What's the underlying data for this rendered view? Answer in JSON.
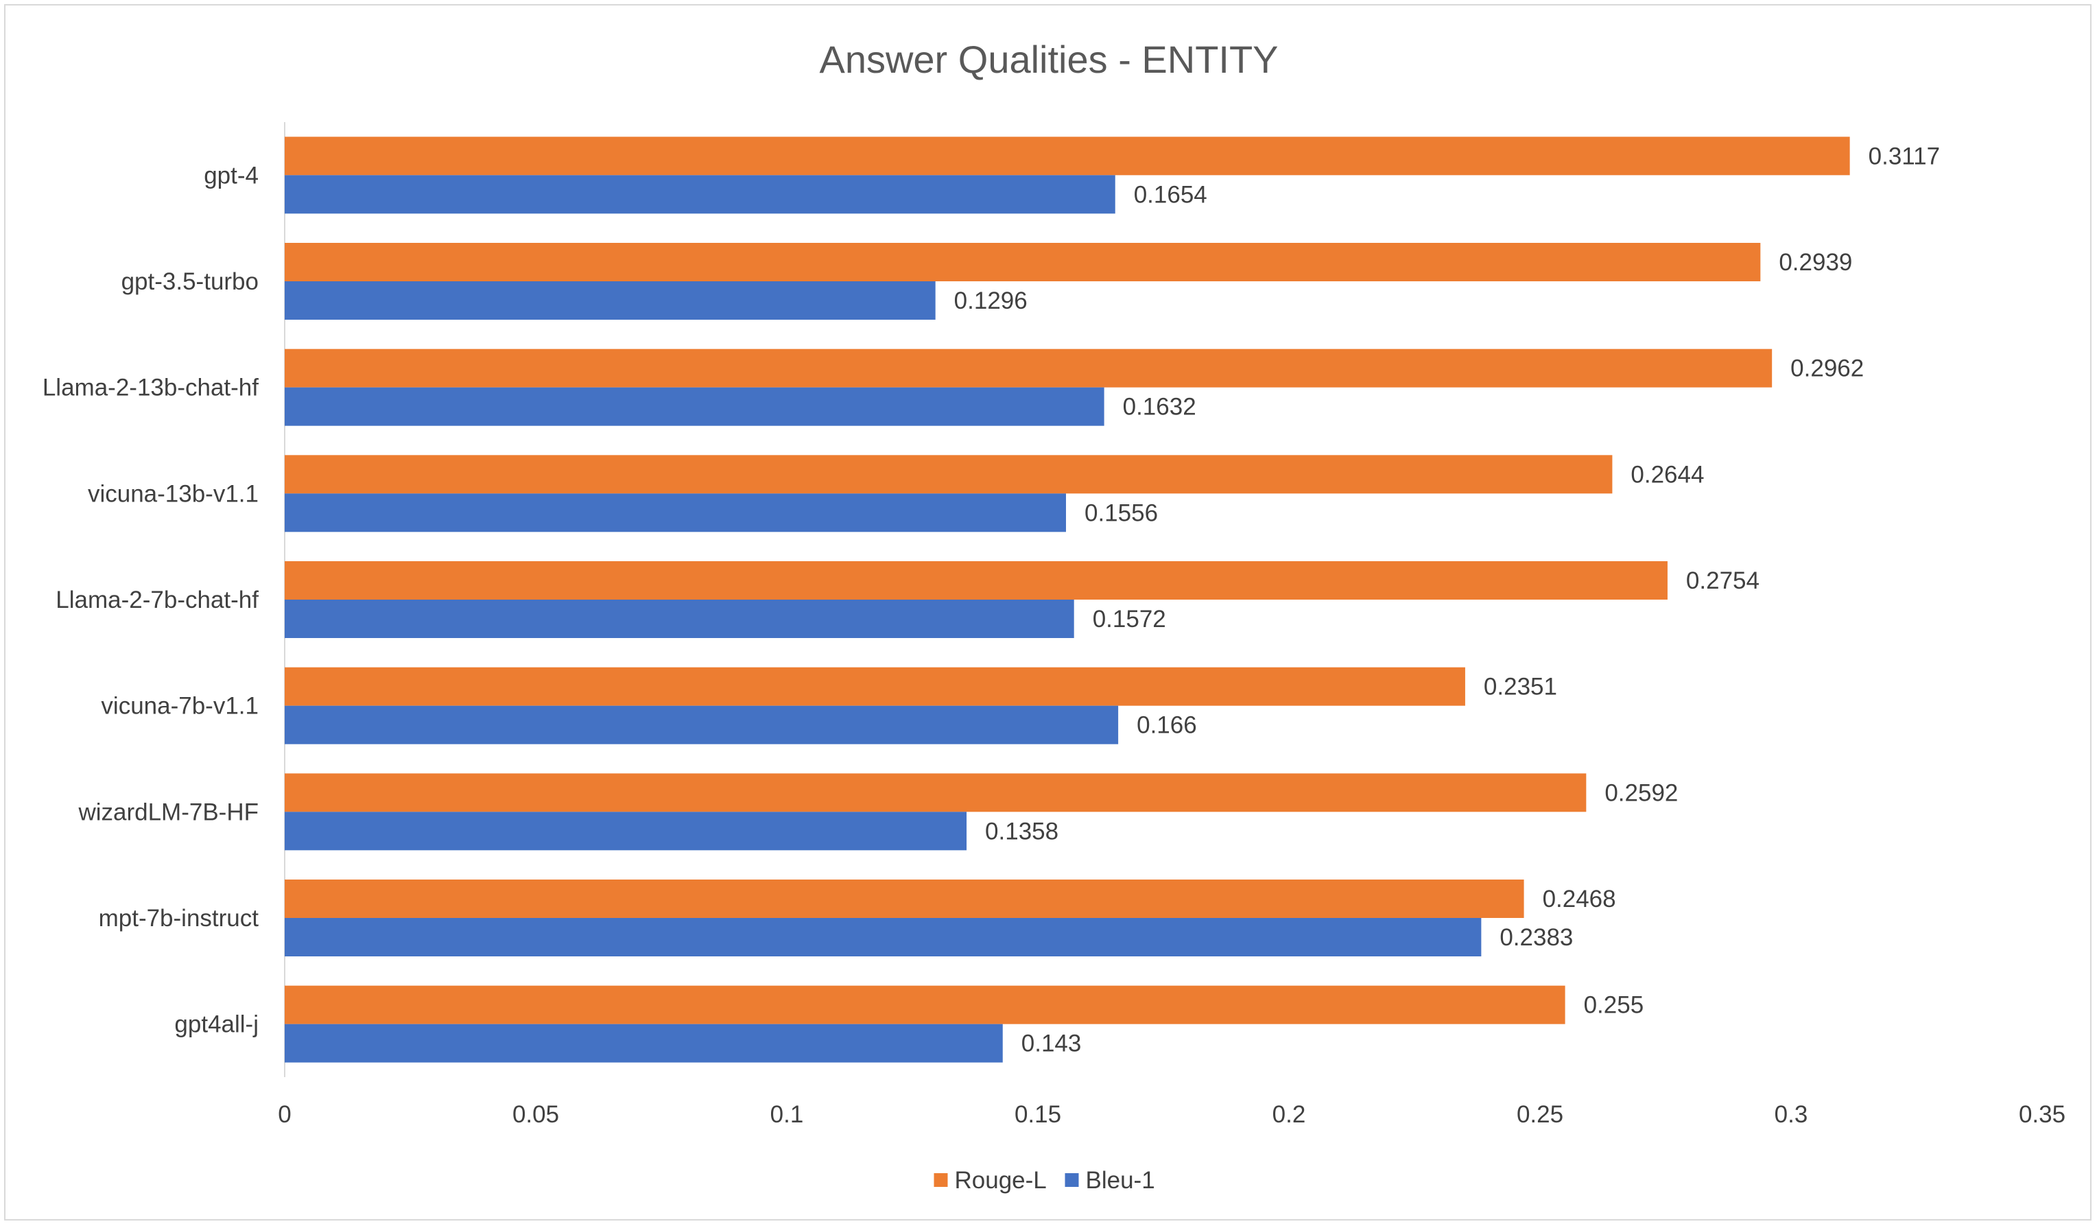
{
  "chart_data": {
    "type": "bar",
    "orientation": "horizontal",
    "title": "Answer Qualities - ENTITY",
    "xlabel": "",
    "ylabel": "",
    "categories": [
      "gpt-4",
      "gpt-3.5-turbo",
      "Llama-2-13b-chat-hf",
      "vicuna-13b-v1.1",
      "Llama-2-7b-chat-hf",
      "vicuna-7b-v1.1",
      "wizardLM-7B-HF",
      "mpt-7b-instruct",
      "gpt4all-j"
    ],
    "series": [
      {
        "name": "Rouge-L",
        "color": "#ed7d31",
        "values": [
          0.3117,
          0.2939,
          0.2962,
          0.2644,
          0.2754,
          0.2351,
          0.2592,
          0.2468,
          0.255
        ],
        "labels": [
          "0.3117",
          "0.2939",
          "0.2962",
          "0.2644",
          "0.2754",
          "0.2351",
          "0.2592",
          "0.2468",
          "0.255"
        ]
      },
      {
        "name": "Bleu-1",
        "color": "#4472c4",
        "values": [
          0.1654,
          0.1296,
          0.1632,
          0.1556,
          0.1572,
          0.166,
          0.1358,
          0.2383,
          0.143
        ],
        "labels": [
          "0.1654",
          "0.1296",
          "0.1632",
          "0.1556",
          "0.1572",
          "0.166",
          "0.1358",
          "0.2383",
          "0.143"
        ]
      }
    ],
    "xlim": [
      0,
      0.35
    ],
    "x_ticks": [
      "0",
      "0.05",
      "0.1",
      "0.15",
      "0.2",
      "0.25",
      "0.3",
      "0.35"
    ],
    "grid": false,
    "legend_position": "bottom"
  }
}
